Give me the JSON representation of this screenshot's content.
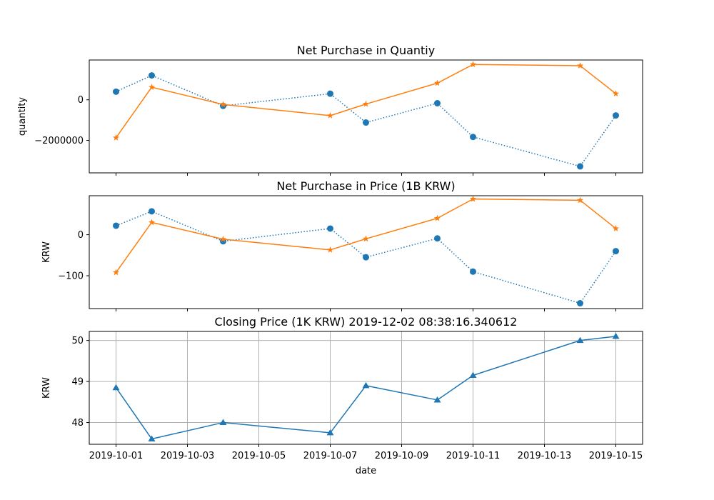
{
  "chart_data": [
    {
      "type": "line",
      "title": "Net Purchase in Quantiy",
      "xlabel": "",
      "ylabel": "quantity",
      "x": [
        "2019-10-01",
        "2019-10-02",
        "2019-10-04",
        "2019-10-07",
        "2019-10-08",
        "2019-10-10",
        "2019-10-11",
        "2019-10-14",
        "2019-10-15"
      ],
      "ylim": [
        -3600000,
        1960000
      ],
      "yticks": [
        0,
        -2000000
      ],
      "ytick_labels": [
        "0",
        "−2000000"
      ],
      "grid": false,
      "series": [
        {
          "color": "#1f77b4",
          "style": "dotted",
          "marker": "circle",
          "values": [
            400000,
            1200000,
            -300000,
            300000,
            -1120000,
            -170000,
            -1830000,
            -3280000,
            -770000
          ]
        },
        {
          "color": "#ff7f0e",
          "style": "solid",
          "marker": "star",
          "values": [
            -1870000,
            620000,
            -230000,
            -780000,
            -210000,
            820000,
            1740000,
            1680000,
            300000
          ]
        }
      ]
    },
    {
      "type": "line",
      "title": "Net Purchase in Price (1B KRW)",
      "xlabel": "",
      "ylabel": "KRW",
      "x": [
        "2019-10-01",
        "2019-10-02",
        "2019-10-04",
        "2019-10-07",
        "2019-10-08",
        "2019-10-10",
        "2019-10-11",
        "2019-10-14",
        "2019-10-15"
      ],
      "ylim": [
        -180,
        95
      ],
      "yticks": [
        0,
        -100
      ],
      "ytick_labels": [
        "0",
        "−100"
      ],
      "grid": false,
      "series": [
        {
          "color": "#1f77b4",
          "style": "dotted",
          "marker": "circle",
          "values": [
            22,
            57,
            -16,
            15,
            -55,
            -9,
            -90,
            -167,
            -40
          ]
        },
        {
          "color": "#ff7f0e",
          "style": "solid",
          "marker": "star",
          "values": [
            -92,
            30,
            -11,
            -37,
            -10,
            40,
            87,
            84,
            15
          ]
        }
      ]
    },
    {
      "type": "line",
      "title": "Closing Price (1K KRW) 2019-12-02 08:38:16.340612",
      "xlabel": "date",
      "ylabel": "KRW",
      "x": [
        "2019-10-01",
        "2019-10-02",
        "2019-10-04",
        "2019-10-07",
        "2019-10-08",
        "2019-10-10",
        "2019-10-11",
        "2019-10-14",
        "2019-10-15"
      ],
      "ylim": [
        47.47,
        50.22
      ],
      "yticks": [
        48,
        49,
        50
      ],
      "ytick_labels": [
        "48",
        "49",
        "50"
      ],
      "grid": true,
      "series": [
        {
          "color": "#1f77b4",
          "style": "solid",
          "marker": "triangle",
          "values": [
            48.85,
            47.6,
            48.0,
            47.75,
            48.9,
            48.55,
            49.15,
            50.0,
            50.1
          ]
        }
      ]
    }
  ],
  "x_axis": {
    "range": [
      "2019-09-30 06:00",
      "2019-10-15 18:00"
    ],
    "ticks": [
      "2019-10-01",
      "2019-10-03",
      "2019-10-05",
      "2019-10-07",
      "2019-10-09",
      "2019-10-11",
      "2019-10-13",
      "2019-10-15"
    ],
    "tick_labels": [
      "2019-10-01",
      "2019-10-03",
      "2019-10-05",
      "2019-10-07",
      "2019-10-09",
      "2019-10-11",
      "2019-10-13",
      "2019-10-15"
    ]
  }
}
